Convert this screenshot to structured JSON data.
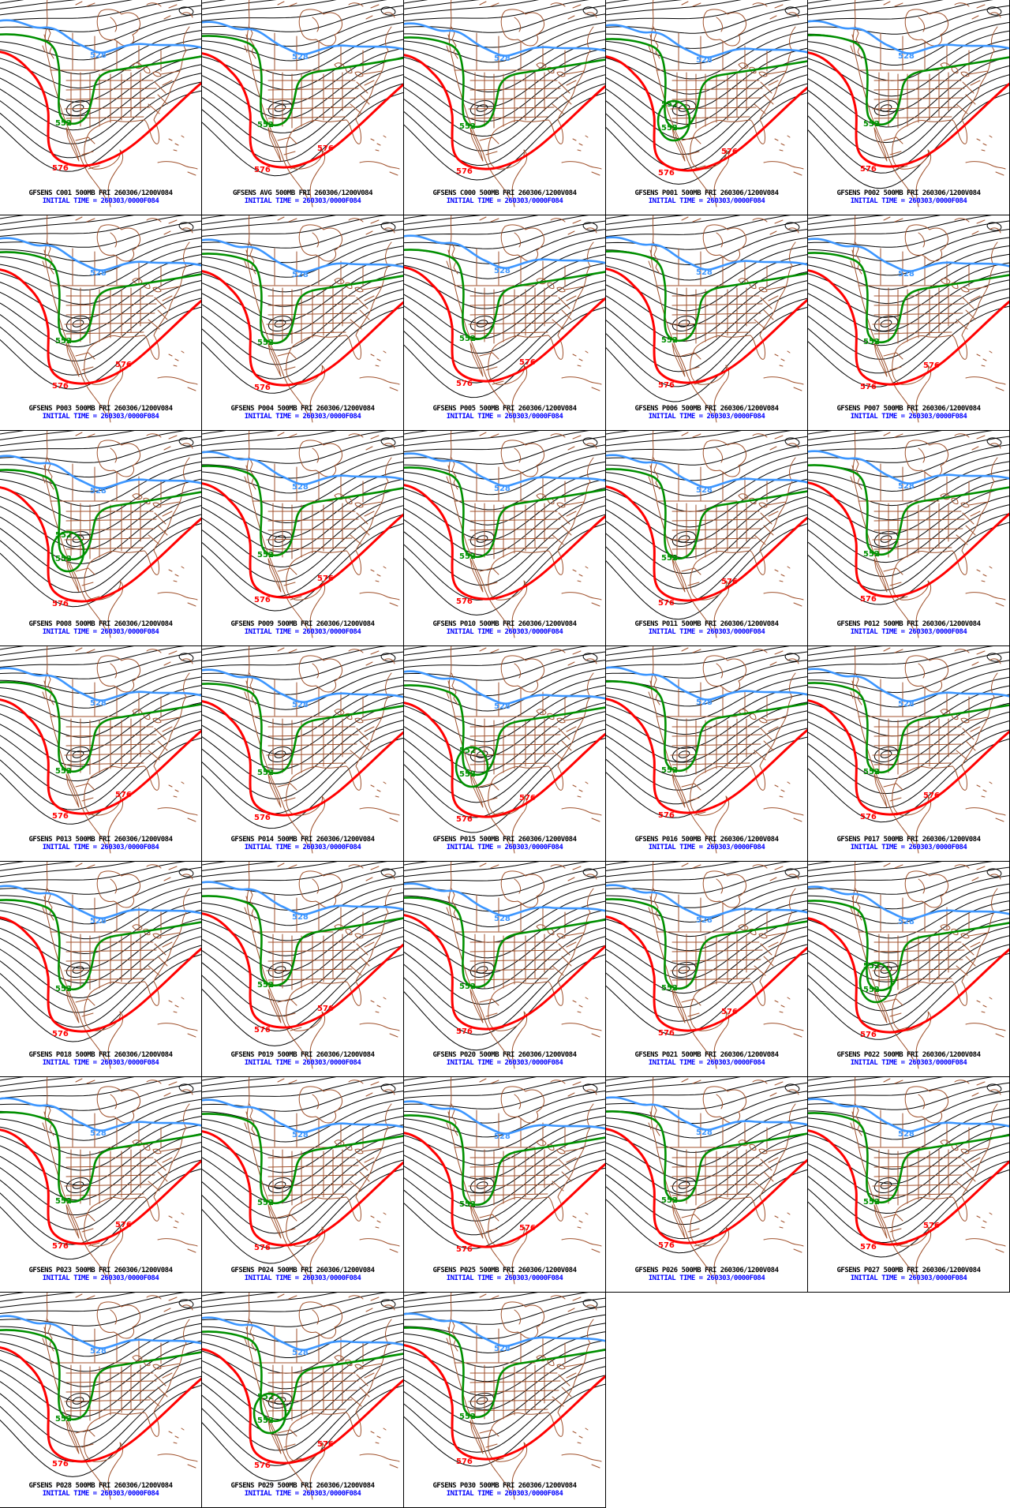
{
  "product": {
    "name": "GFSENS",
    "level": "500MB",
    "valid_time": "FRI 260306/1200V084",
    "initial_time_label": "INITIAL TIME = 260303/0000F084"
  },
  "contours": {
    "blue_label": "528",
    "green_label": "552",
    "red_label": "576"
  },
  "colors": {
    "blue": "#3c96ff",
    "green": "#009000",
    "red": "#ff0000",
    "map_outline": "#a0522d",
    "caption_blue": "#0000ff",
    "contour_black": "#000000",
    "background": "#ffffff"
  },
  "panels": [
    {
      "member": "C001",
      "title": "GFSENS C001 500MB FRI 260306/1200V084"
    },
    {
      "member": "AVG",
      "title": "GFSENS AVG 500MB FRI 260306/1200V084"
    },
    {
      "member": "C000",
      "title": "GFSENS C000 500MB FRI 260306/1200V084"
    },
    {
      "member": "P001",
      "title": "GFSENS P001 500MB FRI 260306/1200V084"
    },
    {
      "member": "P002",
      "title": "GFSENS P002 500MB FRI 260306/1200V084"
    },
    {
      "member": "P003",
      "title": "GFSENS P003 500MB FRI 260306/1200V084"
    },
    {
      "member": "P004",
      "title": "GFSENS P004 500MB FRI 260306/1200V084"
    },
    {
      "member": "P005",
      "title": "GFSENS P005 500MB FRI 260306/1200V084"
    },
    {
      "member": "P006",
      "title": "GFSENS P006 500MB FRI 260306/1200V084"
    },
    {
      "member": "P007",
      "title": "GFSENS P007 500MB FRI 260306/1200V084"
    },
    {
      "member": "P008",
      "title": "GFSENS P008 500MB FRI 260306/1200V084"
    },
    {
      "member": "P009",
      "title": "GFSENS P009 500MB FRI 260306/1200V084"
    },
    {
      "member": "P010",
      "title": "GFSENS P010 500MB FRI 260306/1200V084"
    },
    {
      "member": "P011",
      "title": "GFSENS P011 500MB FRI 260306/1200V084"
    },
    {
      "member": "P012",
      "title": "GFSENS P012 500MB FRI 260306/1200V084"
    },
    {
      "member": "P013",
      "title": "GFSENS P013 500MB FRI 260306/1200V084"
    },
    {
      "member": "P014",
      "title": "GFSENS P014 500MB FRI 260306/1200V084"
    },
    {
      "member": "P015",
      "title": "GFSENS P015 500MB FRI 260306/1200V084"
    },
    {
      "member": "P016",
      "title": "GFSENS P016 500MB FRI 260306/1200V084"
    },
    {
      "member": "P017",
      "title": "GFSENS P017 500MB FRI 260306/1200V084"
    },
    {
      "member": "P018",
      "title": "GFSENS P018 500MB FRI 260306/1200V084"
    },
    {
      "member": "P019",
      "title": "GFSENS P019 500MB FRI 260306/1200V084"
    },
    {
      "member": "P020",
      "title": "GFSENS P020 500MB FRI 260306/1200V084"
    },
    {
      "member": "P021",
      "title": "GFSENS P021 500MB FRI 260306/1200V084"
    },
    {
      "member": "P022",
      "title": "GFSENS P022 500MB FRI 260306/1200V084"
    },
    {
      "member": "P023",
      "title": "GFSENS P023 500MB FRI 260306/1200V084"
    },
    {
      "member": "P024",
      "title": "GFSENS P024 500MB FRI 260306/1200V084"
    },
    {
      "member": "P025",
      "title": "GFSENS P025 500MB FRI 260306/1200V084"
    },
    {
      "member": "P026",
      "title": "GFSENS P026 500MB FRI 260306/1200V084"
    },
    {
      "member": "P027",
      "title": "GFSENS P027 500MB FRI 260306/1200V084"
    },
    {
      "member": "P028",
      "title": "GFSENS P028 500MB FRI 260306/1200V084"
    },
    {
      "member": "P029",
      "title": "GFSENS P029 500MB FRI 260306/1200V084"
    },
    {
      "member": "P030",
      "title": "GFSENS P030 500MB FRI 260306/1200V084"
    }
  ]
}
